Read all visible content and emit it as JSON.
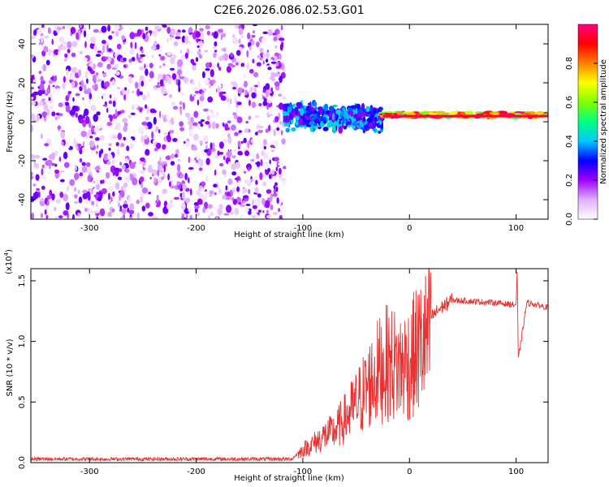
{
  "figure_title": "C2E6.2026.086.02.53.G01",
  "chart_data": [
    {
      "type": "heatmap",
      "xlabel": "Height of straight line (km)",
      "ylabel": "Frequency (Hz)",
      "xlim": [
        -355,
        130
      ],
      "ylim": [
        -50,
        50
      ],
      "xticks": [
        -300,
        -200,
        -100,
        0,
        100
      ],
      "xtick_labels": [
        "-300",
        "-200",
        "-100",
        "0",
        "100"
      ],
      "yticks": [
        -40,
        -20,
        0,
        20,
        40
      ],
      "ytick_labels": [
        "-40",
        "-20",
        "0",
        "20",
        "40"
      ],
      "colorbar": {
        "label": "Normalized spectral amplitude",
        "range": [
          0,
          1
        ],
        "ticks": [
          0.0,
          0.2,
          0.4,
          0.6,
          0.8
        ],
        "tick_labels": [
          "0.0",
          "0.2",
          "0.4",
          "0.6",
          "0.8"
        ],
        "colors": [
          "#ffffff",
          "#e0b0ff",
          "#a000ff",
          "#0000ff",
          "#00c8ff",
          "#00ff80",
          "#80ff00",
          "#ffff00",
          "#ff8000",
          "#ff0000",
          "#ff0080"
        ]
      },
      "regions": [
        {
          "x_range": [
            -355,
            -117
          ],
          "freq_range": [
            -50,
            50
          ],
          "amplitude": [
            0.0,
            0.25
          ],
          "description_color": "purple"
        },
        {
          "x_range": [
            -117,
            -25
          ],
          "freq_range": [
            -5,
            10
          ],
          "amplitude": [
            0.2,
            0.45
          ],
          "description_color": "blue-cyan"
        },
        {
          "x_range": [
            -25,
            130
          ],
          "freq_range": [
            0,
            6
          ],
          "amplitude": [
            0.5,
            1.0
          ],
          "description_color": "red-green"
        }
      ],
      "grid": false
    },
    {
      "type": "line",
      "xlabel": "Height of straight line (km)",
      "ylabel": "SNR (10 * v/v)",
      "y_multiplier_label": "(x10",
      "y_multiplier_exp": "4",
      "xlim": [
        -355,
        130
      ],
      "ylim": [
        0,
        1.6
      ],
      "xticks": [
        -300,
        -200,
        -100,
        0,
        100
      ],
      "xtick_labels": [
        "-300",
        "-200",
        "-100",
        "0",
        "100"
      ],
      "yticks": [
        0.0,
        0.5,
        1.0,
        1.5
      ],
      "ytick_labels": [
        "0.0",
        "0.5",
        "1.0",
        "1.5"
      ],
      "series": [
        {
          "color": "#e83232",
          "x": [
            -355,
            -300,
            -200,
            -110,
            -100,
            -90,
            -80,
            -70,
            -60,
            -50,
            -40,
            -30,
            -20,
            -10,
            0,
            10,
            20,
            30,
            40,
            60,
            80,
            100,
            101,
            102,
            110,
            120,
            130
          ],
          "y": [
            0.03,
            0.03,
            0.03,
            0.03,
            0.12,
            0.18,
            0.25,
            0.3,
            0.42,
            0.55,
            0.7,
            0.85,
            0.95,
            0.9,
            0.95,
            1.1,
            1.2,
            1.28,
            1.34,
            1.33,
            1.32,
            1.3,
            1.58,
            0.85,
            1.32,
            1.3,
            1.28
          ]
        }
      ],
      "grid": false
    }
  ]
}
